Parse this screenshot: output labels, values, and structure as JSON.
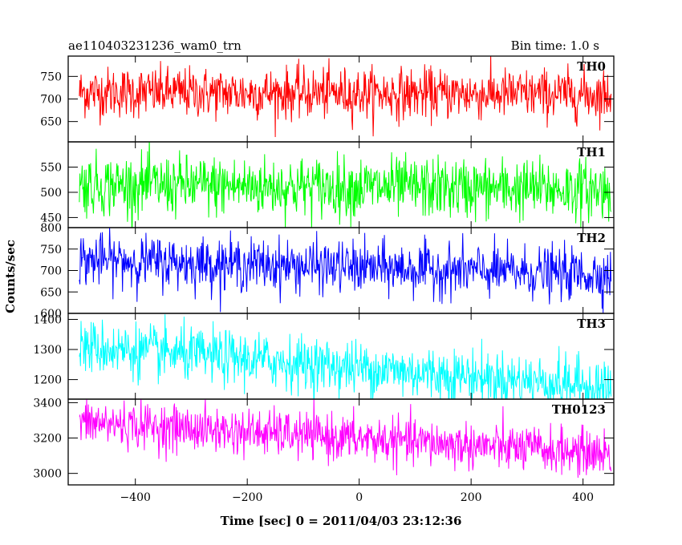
{
  "chart_data": {
    "type": "line",
    "title": "ae110403231236_wam0_trn",
    "bin_time": "Bin time: 1.0 s",
    "xlabel": "Time [sec] 0 = 2011/04/03 23:12:36",
    "ylabel": "Counts/sec",
    "xlim": [
      -520,
      455
    ],
    "x_range_data": [
      -500,
      450
    ],
    "x_step": 1,
    "x_ticks": [
      -400,
      -200,
      0,
      200,
      400
    ],
    "panels": [
      {
        "name": "TH0",
        "color": "#ff0000",
        "ylim": [
          605,
          795
        ],
        "y_ticks": [
          650,
          700,
          750
        ],
        "mean_start": 715,
        "mean_end": 710,
        "noise": 28
      },
      {
        "name": "TH1",
        "color": "#00ff00",
        "ylim": [
          430,
          600
        ],
        "y_ticks": [
          450,
          500,
          550
        ],
        "mean_start": 515,
        "mean_end": 505,
        "noise": 30
      },
      {
        "name": "TH2",
        "color": "#0000ff",
        "ylim": [
          600,
          800
        ],
        "y_ticks": [
          600,
          650,
          700,
          750,
          800
        ],
        "mean_start": 725,
        "mean_end": 690,
        "noise": 30
      },
      {
        "name": "TH3",
        "color": "#00ffff",
        "ylim": [
          1135,
          1420
        ],
        "y_ticks": [
          1200,
          1300,
          1400
        ],
        "mean_start": 1310,
        "mean_end": 1175,
        "noise": 45
      },
      {
        "name": "TH0123",
        "color": "#ff00ff",
        "ylim": [
          2935,
          3420
        ],
        "y_ticks": [
          3000,
          3200,
          3400
        ],
        "mean_start": 3290,
        "mean_end": 3110,
        "noise": 65
      }
    ]
  }
}
